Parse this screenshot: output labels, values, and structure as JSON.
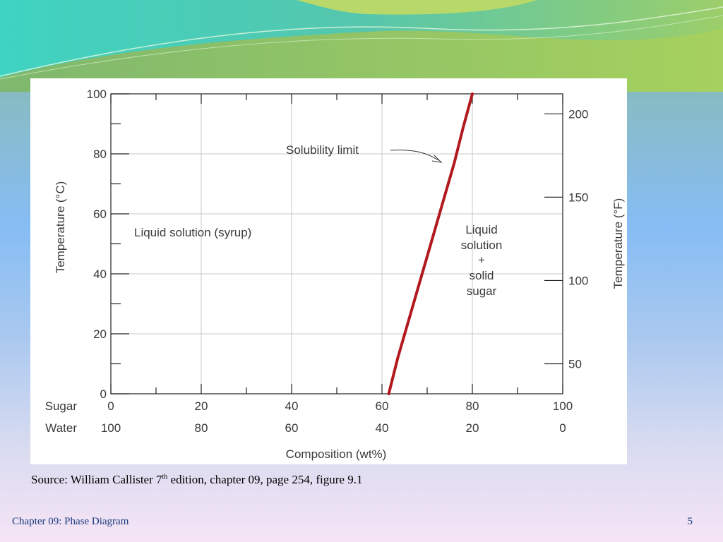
{
  "slide": {
    "source_text": "Source: William Callister 7",
    "source_superscript": "th",
    "source_rest": " edition, chapter 09, page 254, figure 9.1",
    "footer_title": "Chapter 09: Phase Diagram",
    "page_number": "5"
  },
  "chart_data": {
    "type": "line",
    "title": "",
    "xlabel": "Composition (wt%)",
    "ylabel": "Temperature (°C)",
    "y2label": "Temperature (°F)",
    "xlim": [
      0,
      100
    ],
    "ylim": [
      0,
      100
    ],
    "y2lim": [
      32,
      212
    ],
    "x_rows": [
      {
        "name": "Sugar",
        "ticks": [
          "0",
          "20",
          "40",
          "60",
          "80",
          "100"
        ]
      },
      {
        "name": "Water",
        "ticks": [
          "100",
          "80",
          "60",
          "40",
          "20",
          "0"
        ]
      }
    ],
    "y_ticks": [
      0,
      20,
      40,
      60,
      80,
      100
    ],
    "y2_ticks": [
      50,
      100,
      150,
      200
    ],
    "grid": true,
    "series": [
      {
        "color": "#b2191f",
        "x": [
          61.5,
          63.5,
          66,
          68.5,
          71,
          73.5,
          76,
          78,
          80
        ],
        "y": [
          0,
          12,
          25,
          38,
          51,
          64,
          77,
          89,
          100
        ]
      }
    ],
    "annotations": {
      "solubility_limit": "Solubility limit",
      "left_region": "Liquid solution (syrup)",
      "right_region_lines": [
        "Liquid",
        "solution",
        "+",
        "solid",
        "sugar"
      ]
    }
  }
}
